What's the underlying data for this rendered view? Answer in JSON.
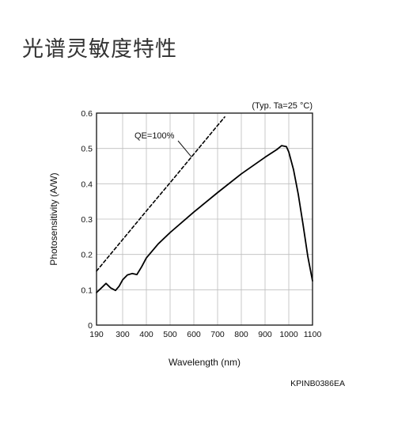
{
  "page": {
    "title": "光谱灵敏度特性"
  },
  "chart_data": {
    "type": "line",
    "xlabel": "Wavelength (nm)",
    "ylabel": "Photosensitivity (A/W)",
    "xlim": [
      190,
      1100
    ],
    "ylim": [
      0,
      0.6
    ],
    "x_ticks": [
      "190",
      "300",
      "400",
      "500",
      "600",
      "700",
      "800",
      "900",
      "1000",
      "1100"
    ],
    "y_ticks": [
      "0",
      "0.1",
      "0.2",
      "0.3",
      "0.4",
      "0.5",
      "0.6"
    ],
    "grid": true,
    "condition_note": "(Typ. Ta=25 °C)",
    "figure_code": "KPINB0386EA",
    "annotation": "QE=100%",
    "series": [
      {
        "style": "dashed",
        "x": [
          190,
          300,
          400,
          500,
          600,
          700,
          730
        ],
        "y": [
          0.153,
          0.242,
          0.323,
          0.403,
          0.484,
          0.565,
          0.589
        ]
      },
      {
        "style": "solid",
        "x": [
          190,
          230,
          250,
          270,
          285,
          300,
          320,
          340,
          360,
          380,
          400,
          450,
          500,
          600,
          700,
          800,
          900,
          950,
          970,
          990,
          1000,
          1020,
          1040,
          1060,
          1080,
          1100
        ],
        "y": [
          0.092,
          0.118,
          0.105,
          0.098,
          0.11,
          0.128,
          0.142,
          0.146,
          0.143,
          0.165,
          0.19,
          0.23,
          0.262,
          0.32,
          0.375,
          0.428,
          0.475,
          0.497,
          0.508,
          0.505,
          0.49,
          0.44,
          0.37,
          0.285,
          0.195,
          0.125
        ]
      }
    ]
  }
}
